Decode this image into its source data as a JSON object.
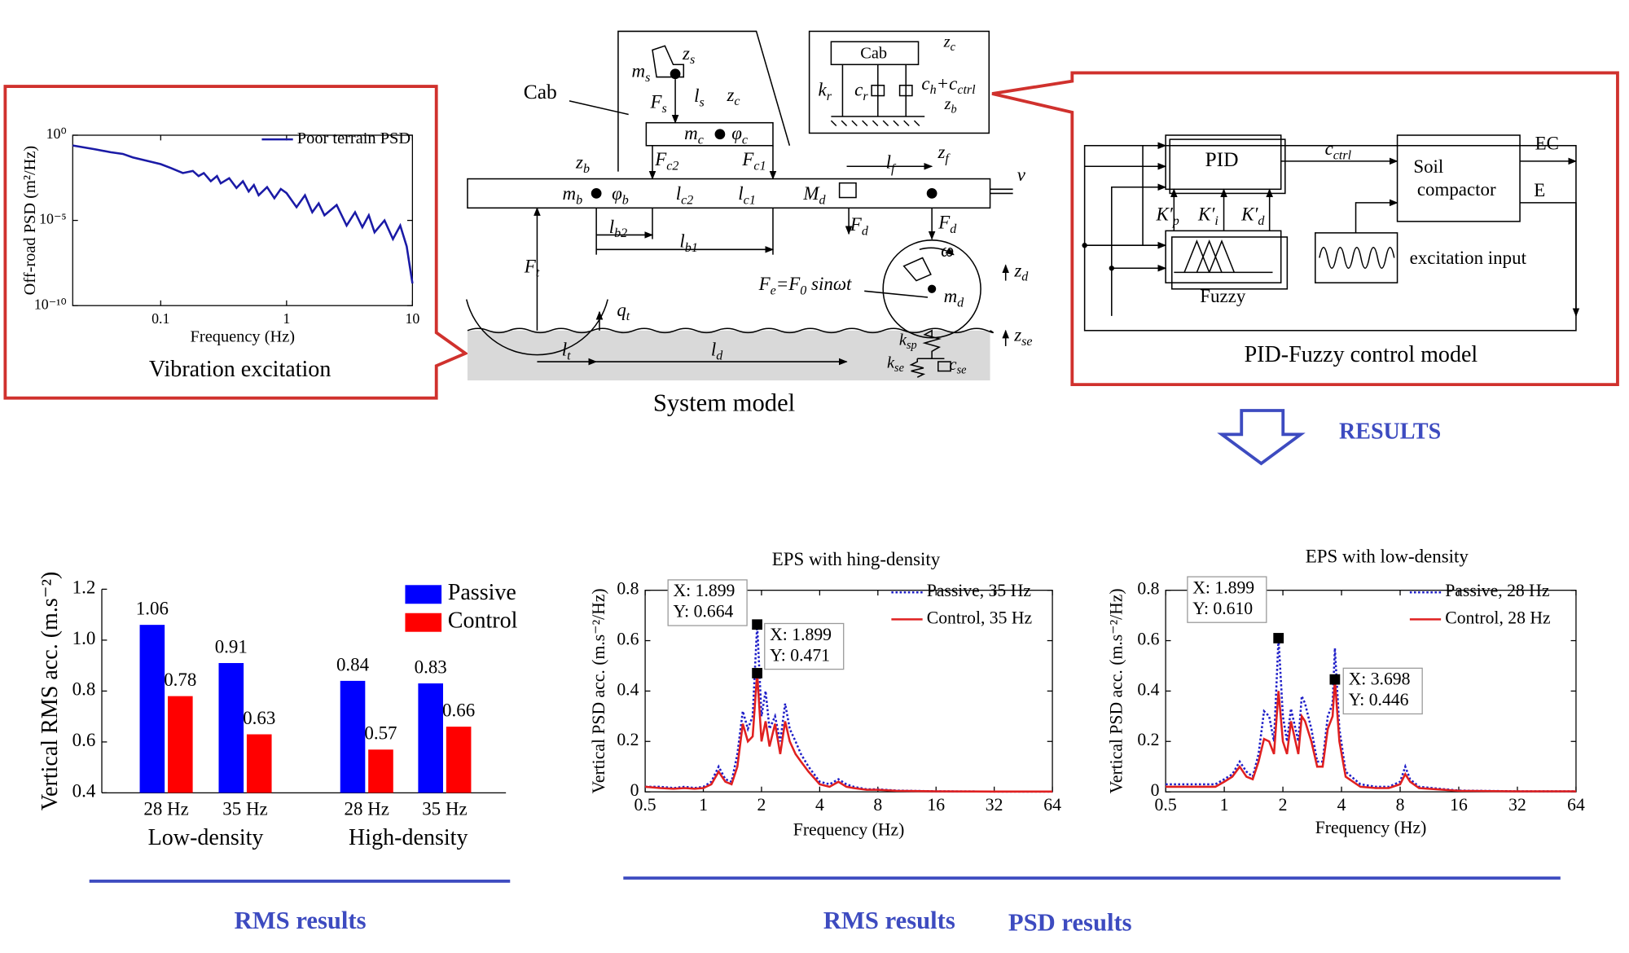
{
  "chart_data": [
    {
      "type": "line",
      "caption": "Vibration excitation",
      "xlabel": "Frequency (Hz)",
      "ylabel": "Off-road PSD (m²/Hz)",
      "xscale": "log",
      "yscale": "log",
      "xlim": [
        0.02,
        10
      ],
      "ylim": [
        1e-10,
        1
      ],
      "xticks": [
        0.1,
        1,
        10
      ],
      "yticks": [
        {
          "value": 1,
          "label": "10⁰"
        },
        {
          "value": 1e-05,
          "label": "10⁻⁵"
        },
        {
          "value": 1e-10,
          "label": "10⁻¹⁰"
        }
      ],
      "x": [
        0.02,
        0.03,
        0.04,
        0.05,
        0.06,
        0.08,
        0.1,
        0.12,
        0.15,
        0.18,
        0.2,
        0.22,
        0.25,
        0.28,
        0.3,
        0.35,
        0.4,
        0.45,
        0.5,
        0.55,
        0.6,
        0.7,
        0.8,
        0.9,
        1,
        1.2,
        1.4,
        1.6,
        1.8,
        2,
        2.5,
        3,
        3.5,
        4,
        4.5,
        5,
        6,
        7,
        8,
        9,
        10
      ],
      "series": [
        {
          "name": "Poor terrain PSD",
          "color": "#1a1aa6",
          "line_style": "solid",
          "values": [
            0.25,
            0.15,
            0.1,
            0.08,
            0.05,
            0.03,
            0.02,
            0.012,
            0.006,
            0.008,
            0.004,
            0.006,
            0.002,
            0.004,
            0.0015,
            0.003,
            0.0008,
            0.002,
            0.0005,
            0.0012,
            0.0003,
            0.0009,
            0.0002,
            0.0007,
            0.0004,
            6e-05,
            0.0003,
            3e-05,
            0.0001,
            2e-05,
            8e-05,
            5e-06,
            3e-05,
            4e-06,
            2e-05,
            2e-06,
            1e-05,
            8e-07,
            5e-06,
            3e-07,
            2e-09
          ]
        }
      ]
    },
    {
      "type": "bar",
      "ylabel": "Vertical RMS acc. (m.s⁻²)",
      "categories": [
        "28 Hz",
        "35 Hz",
        "28 Hz",
        "35 Hz"
      ],
      "group_labels": [
        "Low-density",
        "High-density"
      ],
      "ylim": [
        0.4,
        1.2
      ],
      "yticks": [
        0.4,
        0.6,
        0.8,
        {
          "value": 1,
          "label": "1.0"
        },
        1.2
      ],
      "series": [
        {
          "name": "Passive",
          "color": "#0000ff",
          "values": [
            1.06,
            0.91,
            0.84,
            0.83
          ]
        },
        {
          "name": "Control",
          "color": "#ff0000",
          "values": [
            0.78,
            0.63,
            0.57,
            0.66
          ]
        }
      ]
    },
    {
      "type": "line",
      "title": "EPS with hing-density",
      "xlabel": "Frequency (Hz)",
      "ylabel": "Vertical PSD acc. (m.s⁻²/Hz)",
      "xscale": "log",
      "yscale": "linear",
      "xlim": [
        0.5,
        64
      ],
      "ylim": [
        0,
        0.8
      ],
      "xticks": [
        0.5,
        1,
        2,
        4,
        8,
        16,
        32,
        64
      ],
      "yticks": [
        0,
        0.2,
        0.4,
        0.6,
        0.8
      ],
      "x": [
        0.5,
        0.6,
        0.7,
        0.8,
        0.9,
        1,
        1.1,
        1.2,
        1.3,
        1.4,
        1.5,
        1.6,
        1.7,
        1.8,
        1.899,
        2,
        2.1,
        2.2,
        2.35,
        2.5,
        2.65,
        2.8,
        3,
        3.2,
        3.5,
        4,
        4.5,
        5,
        5.5,
        6,
        7,
        8,
        10,
        16,
        32,
        64
      ],
      "series": [
        {
          "name": "Passive, 35 Hz",
          "color": "#1f1fc8",
          "line_style": "dotted",
          "values": [
            0.02,
            0.02,
            0.015,
            0.02,
            0.015,
            0.02,
            0.04,
            0.1,
            0.05,
            0.04,
            0.15,
            0.32,
            0.25,
            0.3,
            0.664,
            0.3,
            0.4,
            0.25,
            0.3,
            0.2,
            0.35,
            0.25,
            0.2,
            0.15,
            0.1,
            0.04,
            0.03,
            0.05,
            0.03,
            0.02,
            0.01,
            0.01,
            0.005,
            0.002,
            0.001,
            0.001
          ]
        },
        {
          "name": "Control, 35 Hz",
          "color": "#e02020",
          "line_style": "solid",
          "values": [
            0.02,
            0.015,
            0.012,
            0.015,
            0.012,
            0.015,
            0.03,
            0.08,
            0.04,
            0.03,
            0.1,
            0.27,
            0.2,
            0.22,
            0.471,
            0.2,
            0.28,
            0.18,
            0.27,
            0.15,
            0.28,
            0.2,
            0.15,
            0.12,
            0.08,
            0.03,
            0.02,
            0.04,
            0.02,
            0.015,
            0.008,
            0.008,
            0.004,
            0.002,
            0.001,
            0.001
          ]
        }
      ],
      "datatips": [
        {
          "x": 1.899,
          "y": 0.664,
          "x_label": "X: 1.899",
          "y_label": "Y: 0.664"
        },
        {
          "x": 1.899,
          "y": 0.471,
          "x_label": "X: 1.899",
          "y_label": "Y: 0.471"
        }
      ]
    },
    {
      "type": "line",
      "title": "EPS with low-density",
      "xlabel": "Frequency (Hz)",
      "ylabel": "Vertical PSD acc. (m.s⁻²/Hz)",
      "xscale": "log",
      "yscale": "linear",
      "xlim": [
        0.5,
        64
      ],
      "ylim": [
        0,
        0.8
      ],
      "xticks": [
        0.5,
        1,
        2,
        4,
        8,
        16,
        32,
        64
      ],
      "yticks": [
        0,
        0.2,
        0.4,
        0.6,
        0.8
      ],
      "x": [
        0.5,
        0.7,
        0.9,
        1,
        1.1,
        1.2,
        1.3,
        1.4,
        1.5,
        1.6,
        1.7,
        1.8,
        1.899,
        2,
        2.1,
        2.2,
        2.4,
        2.5,
        2.6,
        2.8,
        3,
        3.2,
        3.4,
        3.6,
        3.698,
        3.9,
        4.2,
        5,
        6,
        7,
        8,
        8.5,
        9,
        10,
        16,
        32,
        64
      ],
      "series": [
        {
          "name": "Passive, 28 Hz",
          "color": "#1f1fc8",
          "line_style": "dotted",
          "values": [
            0.03,
            0.03,
            0.03,
            0.05,
            0.07,
            0.12,
            0.08,
            0.06,
            0.15,
            0.32,
            0.3,
            0.2,
            0.61,
            0.3,
            0.2,
            0.33,
            0.2,
            0.38,
            0.35,
            0.25,
            0.12,
            0.12,
            0.3,
            0.35,
            0.57,
            0.25,
            0.08,
            0.03,
            0.02,
            0.02,
            0.04,
            0.1,
            0.05,
            0.02,
            0.005,
            0.002,
            0.002
          ]
        },
        {
          "name": "Control, 28 Hz",
          "color": "#e02020",
          "line_style": "solid",
          "values": [
            0.02,
            0.02,
            0.02,
            0.04,
            0.06,
            0.1,
            0.06,
            0.05,
            0.12,
            0.21,
            0.2,
            0.15,
            0.4,
            0.2,
            0.15,
            0.28,
            0.15,
            0.3,
            0.28,
            0.2,
            0.1,
            0.1,
            0.25,
            0.3,
            0.446,
            0.2,
            0.06,
            0.02,
            0.015,
            0.015,
            0.03,
            0.07,
            0.04,
            0.015,
            0.004,
            0.002,
            0.002
          ]
        }
      ],
      "datatips": [
        {
          "x": 1.899,
          "y": 0.61,
          "x_label": "X: 1.899",
          "y_label": "Y: 0.610"
        },
        {
          "x": 3.698,
          "y": 0.446,
          "x_label": "X: 3.698",
          "y_label": "Y: 0.446"
        }
      ]
    }
  ],
  "diagram": {
    "labels": [
      [
        "Cab"
      ],
      [
        "z",
        "s"
      ],
      [
        "m",
        "s"
      ],
      [
        "l",
        "s"
      ],
      [
        "z",
        "c"
      ],
      [
        "F",
        "s"
      ],
      [
        "m",
        "c"
      ],
      [
        "φ",
        "c"
      ],
      [
        "F",
        "c2"
      ],
      [
        "F",
        "c1"
      ],
      [
        "z",
        "b"
      ],
      [
        "m",
        "b"
      ],
      [
        "φ",
        "b"
      ],
      [
        "l",
        "c2"
      ],
      [
        "l",
        "c1"
      ],
      [
        "M",
        "d"
      ],
      [
        "l",
        "f"
      ],
      [
        "z",
        "f"
      ],
      [
        "v"
      ],
      [
        "F",
        "d"
      ],
      [
        "F",
        "d"
      ],
      [
        "l",
        "b2"
      ],
      [
        "l",
        "b1"
      ],
      [
        "F",
        "t"
      ],
      [
        "q",
        "t"
      ],
      [
        "ω"
      ],
      [
        "F",
        "e",
        "=F",
        "0",
        " sinωt"
      ],
      [
        "m",
        "d"
      ],
      [
        "z",
        "d"
      ],
      [
        "k",
        "sp"
      ],
      [
        "z",
        "se"
      ],
      [
        "k",
        "se"
      ],
      [
        "c",
        "se"
      ],
      [
        "l",
        "t"
      ],
      [
        "l",
        "d"
      ],
      [
        "Cab"
      ],
      [
        "z",
        "c"
      ],
      [
        "k",
        "r"
      ],
      [
        "c",
        "r"
      ],
      [
        "c",
        "h",
        "+c",
        "ctrl"
      ],
      [
        "z",
        "b"
      ],
      [
        "PID"
      ],
      [
        "c",
        "ctrl"
      ],
      [
        "Soil"
      ],
      [
        "compactor"
      ],
      [
        "EC"
      ],
      [
        "E"
      ],
      [
        "K′",
        "p"
      ],
      [
        "K′",
        "i"
      ],
      [
        "K′",
        "d"
      ],
      [
        "Fuzzy"
      ],
      [
        "excitation input"
      ]
    ],
    "captions": [
      "System model",
      "PID-Fuzzy control model",
      "RESULTS",
      "RMS results",
      "RMS results",
      "PSD results"
    ]
  }
}
